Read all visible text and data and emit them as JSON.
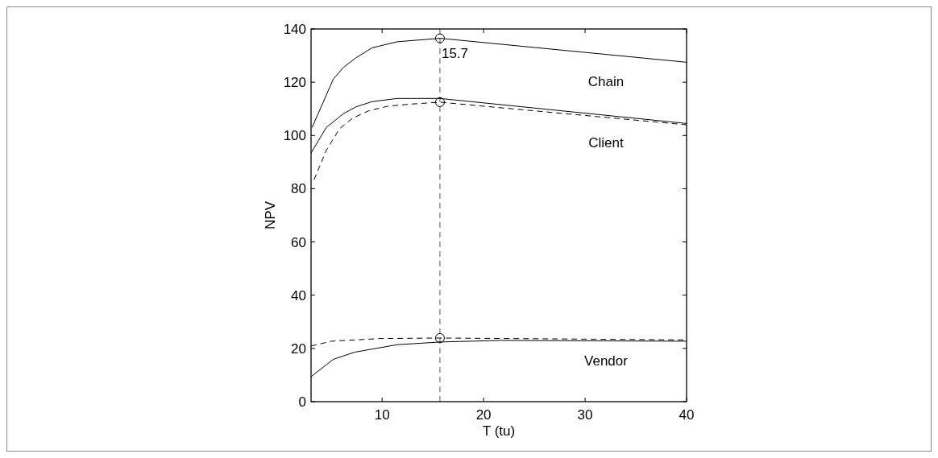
{
  "chart_data": {
    "type": "line",
    "xlabel": "T (tu)",
    "ylabel": "NPV",
    "xlim": [
      3,
      40
    ],
    "ylim": [
      0,
      140
    ],
    "xticks": [
      10,
      20,
      30,
      40
    ],
    "yticks": [
      0,
      20,
      40,
      60,
      80,
      100,
      120,
      140
    ],
    "grid": false,
    "series": [
      {
        "name": "Chain",
        "color": "#000000",
        "line_style": "solid",
        "marker": "none",
        "x": [
          3.1,
          5.2,
          6.2,
          7.4,
          9.0,
          11.5,
          15.7,
          40
        ],
        "values": [
          103,
          121.2,
          125.6,
          129.1,
          132.9,
          135.2,
          136.5,
          127.5
        ]
      },
      {
        "name": "Client",
        "color": "#000000",
        "line_style": "solid",
        "marker": "none",
        "x": [
          3,
          4.5,
          6.2,
          7.4,
          9.0,
          11.5,
          15.7,
          40
        ],
        "values": [
          93.4,
          103,
          108.2,
          110.7,
          112.7,
          113.9,
          113.9,
          104.5
        ]
      },
      {
        "color": "#000000",
        "line_style": "dashed",
        "marker": "none",
        "x": [
          3.3,
          4.5,
          5.8,
          7.1,
          8.7,
          10.6,
          12.9,
          15.7,
          40
        ],
        "values": [
          83.4,
          94.4,
          102.5,
          106.5,
          109.3,
          111,
          111.8,
          112.5,
          104
        ]
      },
      {
        "name": "Vendor",
        "color": "#000000",
        "line_style": "solid",
        "marker": "none",
        "x": [
          3,
          5.2,
          7.3,
          11.5,
          15.7,
          21.7,
          40
        ],
        "values": [
          9.4,
          15.9,
          18.6,
          21.4,
          22.4,
          23,
          22.7
        ]
      },
      {
        "color": "#000000",
        "line_style": "dashed",
        "marker": "none",
        "x": [
          3,
          5,
          9.8,
          15.7,
          40
        ],
        "values": [
          20.9,
          22.7,
          23.7,
          23.9,
          23.2
        ]
      },
      {
        "type": "scatter",
        "color": "#000000",
        "marker": "circle",
        "x": [
          15.7,
          15.7,
          15.7
        ],
        "values": [
          136.5,
          112.5,
          23.9
        ]
      }
    ],
    "ref_lines": [
      {
        "axis": "x",
        "value": 15.7,
        "label": "15.7",
        "color": "#555555",
        "line_style": "dashed"
      }
    ]
  }
}
